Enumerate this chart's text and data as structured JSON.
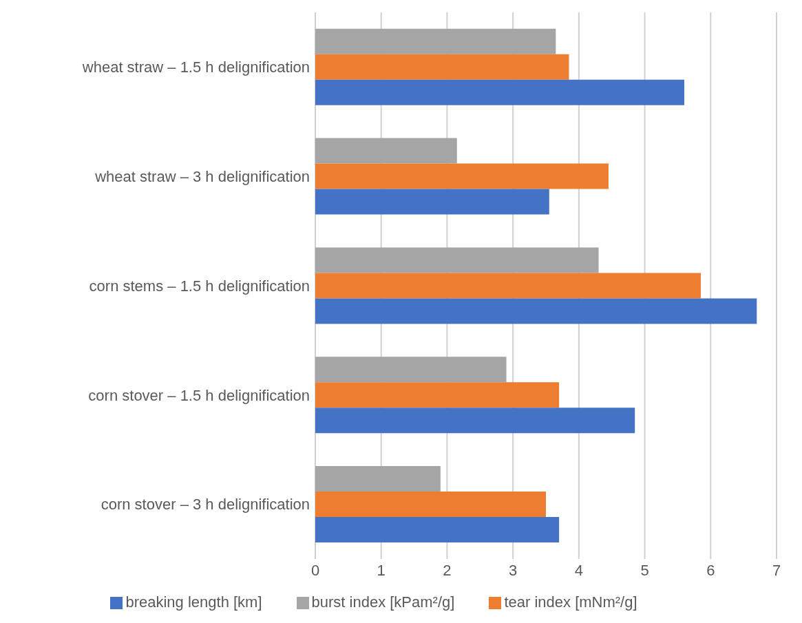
{
  "chart_data": {
    "type": "bar",
    "orientation": "horizontal",
    "categories": [
      "wheat straw – 1.5 h delignification",
      "wheat straw – 3 h delignification",
      "corn stems – 1.5 h delignification",
      "corn stover – 1.5 h delignification",
      "corn stover – 3 h delignification"
    ],
    "series": [
      {
        "name": "burst index [kPam²/g]",
        "color": "#a5a5a5",
        "values": [
          3.65,
          2.15,
          4.3,
          2.9,
          1.9
        ]
      },
      {
        "name": "tear index [mNm²/g]",
        "color": "#ed7d31",
        "values": [
          3.85,
          4.45,
          5.85,
          3.7,
          3.5
        ]
      },
      {
        "name": "breaking length [km]",
        "color": "#4472c4",
        "values": [
          5.6,
          3.55,
          6.7,
          4.85,
          3.7
        ]
      }
    ],
    "xlim": [
      0,
      7
    ],
    "xticks": [
      0,
      1,
      2,
      3,
      4,
      5,
      6,
      7
    ],
    "grid": "x",
    "legend": "bottom"
  }
}
